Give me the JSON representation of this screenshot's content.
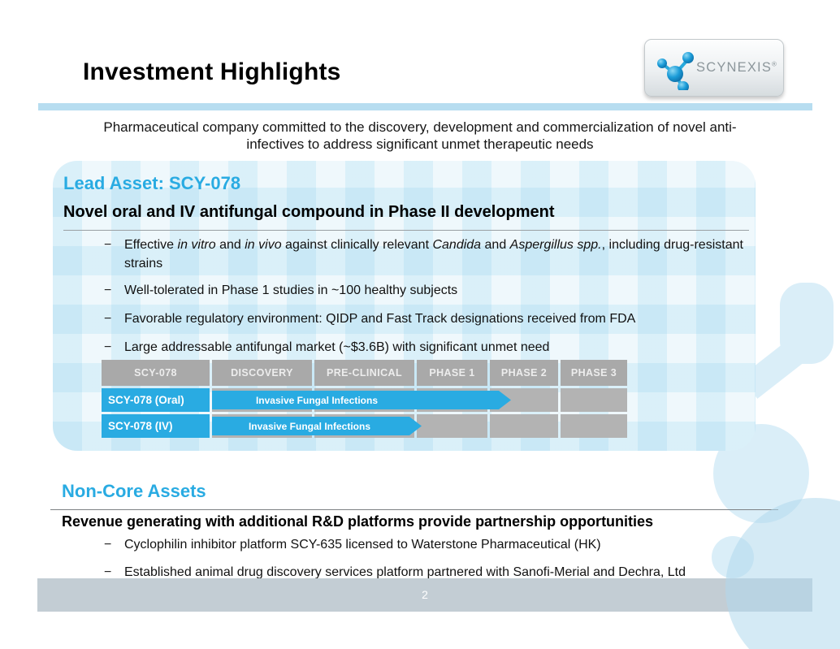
{
  "header": {
    "title": "Investment Highlights",
    "subtitle_line1": "Pharmaceutical company committed to the discovery, development and commercialization of novel anti-",
    "subtitle_line2": "infectives to address significant unmet therapeutic needs"
  },
  "logo": {
    "brand": "SCYNEXIS",
    "registered_mark": "®"
  },
  "bullet_marker": "−",
  "lead_asset": {
    "heading": "Lead Asset: SCY-078",
    "subheading": "Novel oral and IV antifungal compound in Phase II development",
    "bullets": [
      [
        {
          "t": "Effective "
        },
        {
          "t": "in vitro",
          "i": true
        },
        {
          "t": " and "
        },
        {
          "t": "in vivo",
          "i": true
        },
        {
          "t": " against clinically relevant "
        },
        {
          "t": "Candida",
          "i": true
        },
        {
          "t": " and "
        },
        {
          "t": "Aspergillus spp.",
          "i": true
        },
        {
          "t": ", including drug-resistant strains"
        }
      ],
      [
        {
          "t": "Well-tolerated in Phase 1 studies in ~100 healthy subjects"
        }
      ],
      [
        {
          "t": "Favorable regulatory environment: QIDP and Fast Track designations received from FDA"
        }
      ],
      [
        {
          "t": "Large addressable antifungal market (~$3.6B) with significant unmet need"
        }
      ]
    ],
    "pipeline_table": {
      "headers": [
        "SCY-078",
        "DISCOVERY",
        "PRE-CLINICAL",
        "PHASE 1",
        "PHASE 2",
        "PHASE 3"
      ],
      "rows": [
        {
          "label": "SCY-078 (Oral)",
          "indication": "Invasive Fungal Infections",
          "arrow_span": "Discovery through start of Phase 2"
        },
        {
          "label": "SCY-078 (IV)",
          "indication": "Invasive Fungal Infections",
          "arrow_span": "Discovery through start of Phase 1"
        }
      ]
    }
  },
  "non_core": {
    "heading": "Non-Core Assets",
    "subheading": "Revenue generating with additional R&D platforms provide partnership opportunities",
    "bullets": [
      [
        {
          "t": "Cyclophilin inhibitor platform SCY-635 licensed to Waterstone Pharmaceutical (HK)"
        }
      ],
      [
        {
          "t": "Established animal drug discovery services platform partnered with Sanofi-Merial and Dechra, Ltd"
        }
      ]
    ]
  },
  "footer": {
    "page_number": "2"
  },
  "colors": {
    "accent_blue": "#29ABE2",
    "title_rule_blue": "#B7DDF0",
    "table_gray": "#ACACAC",
    "footer_bar_gray": "#C3CDD4",
    "watermark_blue": "#DAEEF8"
  }
}
